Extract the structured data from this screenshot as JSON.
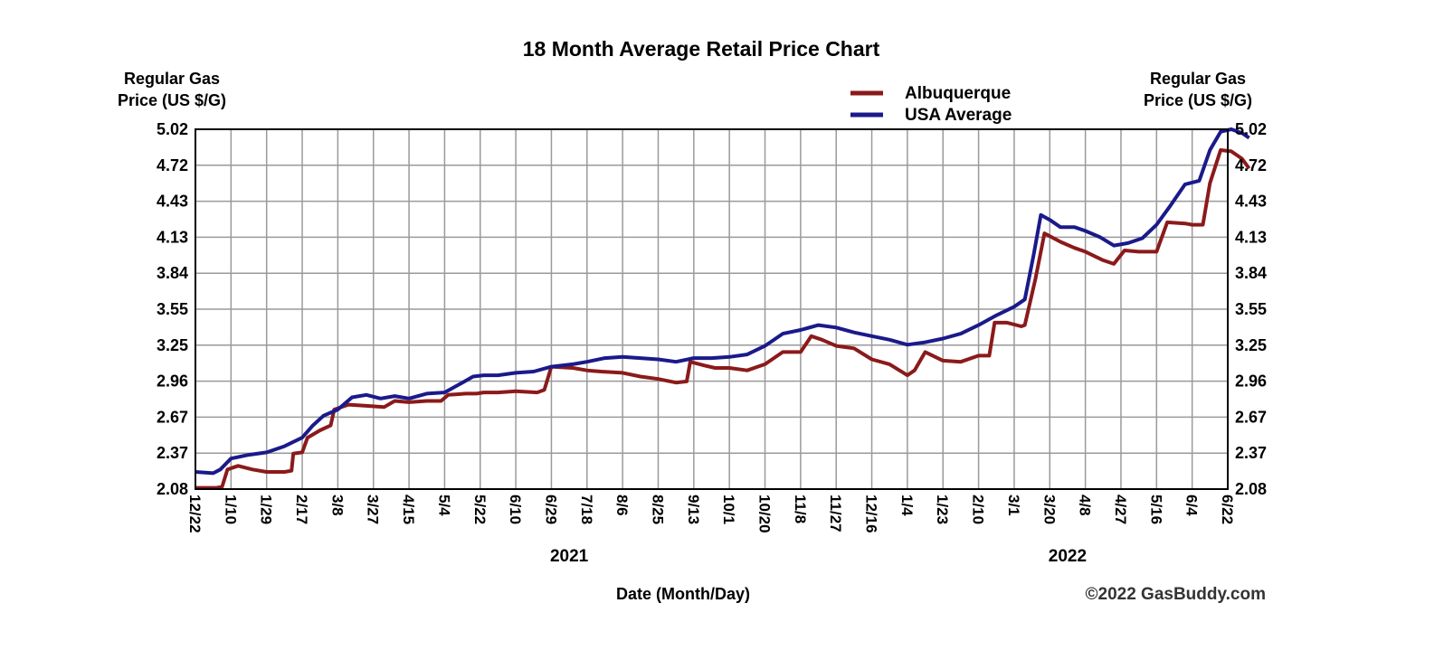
{
  "chart_data": {
    "type": "line",
    "title": "18 Month Average Retail Price Chart",
    "ylabel_left": [
      "Regular Gas",
      "Price (US $/G)"
    ],
    "ylabel_right": [
      "Regular Gas",
      "Price (US $/G)"
    ],
    "xlabel": "Date (Month/Day)",
    "credit": "©2022 GasBuddy.com",
    "ylim": [
      2.08,
      5.02
    ],
    "yticks": [
      "5.02",
      "4.72",
      "4.43",
      "4.13",
      "3.84",
      "3.55",
      "3.25",
      "2.96",
      "2.67",
      "2.37",
      "2.08"
    ],
    "grid": true,
    "legend_position": "top-right",
    "x_tick_labels": [
      "12/22",
      "1/10",
      "1/29",
      "2/17",
      "3/8",
      "3/27",
      "4/15",
      "5/4",
      "5/22",
      "6/10",
      "6/29",
      "7/18",
      "8/6",
      "8/25",
      "9/13",
      "10/1",
      "10/20",
      "11/8",
      "11/27",
      "12/16",
      "1/4",
      "1/23",
      "2/10",
      "3/1",
      "3/20",
      "4/8",
      "4/27",
      "5/16",
      "6/4",
      "6/22"
    ],
    "year_labels": [
      {
        "label": "2021",
        "at_tick": 10.5
      },
      {
        "label": "2022",
        "at_tick": 24.5
      }
    ],
    "series": [
      {
        "name": "Albuquerque",
        "color": "#8B1A1A",
        "points": [
          [
            0,
            2.09
          ],
          [
            0.6,
            2.09
          ],
          [
            0.75,
            2.1
          ],
          [
            0.9,
            2.24
          ],
          [
            1.2,
            2.27
          ],
          [
            1.6,
            2.24
          ],
          [
            2,
            2.22
          ],
          [
            2.5,
            2.22
          ],
          [
            2.7,
            2.23
          ],
          [
            2.75,
            2.37
          ],
          [
            3,
            2.38
          ],
          [
            3.15,
            2.5
          ],
          [
            3.5,
            2.56
          ],
          [
            3.8,
            2.6
          ],
          [
            3.9,
            2.73
          ],
          [
            4.3,
            2.77
          ],
          [
            4.8,
            2.76
          ],
          [
            5.3,
            2.75
          ],
          [
            5.6,
            2.8
          ],
          [
            6,
            2.79
          ],
          [
            6.5,
            2.8
          ],
          [
            6.9,
            2.8
          ],
          [
            7.1,
            2.85
          ],
          [
            7.6,
            2.86
          ],
          [
            7.9,
            2.86
          ],
          [
            8.1,
            2.87
          ],
          [
            8.5,
            2.87
          ],
          [
            9,
            2.88
          ],
          [
            9.6,
            2.87
          ],
          [
            9.8,
            2.89
          ],
          [
            10,
            3.08
          ],
          [
            10.6,
            3.07
          ],
          [
            11,
            3.05
          ],
          [
            11.4,
            3.04
          ],
          [
            12,
            3.03
          ],
          [
            12.5,
            3.0
          ],
          [
            13,
            2.98
          ],
          [
            13.5,
            2.95
          ],
          [
            13.8,
            2.96
          ],
          [
            13.9,
            3.12
          ],
          [
            14.3,
            3.09
          ],
          [
            14.6,
            3.07
          ],
          [
            15,
            3.07
          ],
          [
            15.5,
            3.05
          ],
          [
            16,
            3.1
          ],
          [
            16.5,
            3.2
          ],
          [
            17,
            3.2
          ],
          [
            17.3,
            3.33
          ],
          [
            17.6,
            3.3
          ],
          [
            18,
            3.25
          ],
          [
            18.5,
            3.23
          ],
          [
            19,
            3.14
          ],
          [
            19.5,
            3.1
          ],
          [
            20,
            3.01
          ],
          [
            20.2,
            3.05
          ],
          [
            20.5,
            3.2
          ],
          [
            21,
            3.13
          ],
          [
            21.5,
            3.12
          ],
          [
            22,
            3.17
          ],
          [
            22.3,
            3.17
          ],
          [
            22.45,
            3.44
          ],
          [
            22.8,
            3.44
          ],
          [
            23.2,
            3.41
          ],
          [
            23.3,
            3.42
          ],
          [
            23.6,
            3.8
          ],
          [
            23.85,
            4.17
          ],
          [
            24.3,
            4.1
          ],
          [
            24.7,
            4.05
          ],
          [
            25,
            4.02
          ],
          [
            25.5,
            3.95
          ],
          [
            25.8,
            3.92
          ],
          [
            26.1,
            4.03
          ],
          [
            26.5,
            4.02
          ],
          [
            27,
            4.02
          ],
          [
            27.3,
            4.26
          ],
          [
            27.8,
            4.25
          ],
          [
            28,
            4.24
          ],
          [
            28.3,
            4.24
          ],
          [
            28.5,
            4.58
          ],
          [
            28.8,
            4.85
          ],
          [
            29.1,
            4.84
          ],
          [
            29.4,
            4.78
          ],
          [
            29.6,
            4.7
          ]
        ]
      },
      {
        "name": "USA Average",
        "color": "#1A1A8B",
        "points": [
          [
            0,
            2.22
          ],
          [
            0.5,
            2.21
          ],
          [
            0.7,
            2.24
          ],
          [
            1,
            2.33
          ],
          [
            1.5,
            2.36
          ],
          [
            2,
            2.38
          ],
          [
            2.5,
            2.43
          ],
          [
            3,
            2.5
          ],
          [
            3.3,
            2.6
          ],
          [
            3.6,
            2.68
          ],
          [
            4,
            2.73
          ],
          [
            4.4,
            2.83
          ],
          [
            4.8,
            2.85
          ],
          [
            5.2,
            2.82
          ],
          [
            5.6,
            2.84
          ],
          [
            6,
            2.82
          ],
          [
            6.5,
            2.86
          ],
          [
            7,
            2.87
          ],
          [
            7.5,
            2.95
          ],
          [
            7.8,
            3.0
          ],
          [
            8.1,
            3.01
          ],
          [
            8.5,
            3.01
          ],
          [
            9,
            3.03
          ],
          [
            9.5,
            3.04
          ],
          [
            10,
            3.08
          ],
          [
            10.6,
            3.1
          ],
          [
            11,
            3.12
          ],
          [
            11.5,
            3.15
          ],
          [
            12,
            3.16
          ],
          [
            12.5,
            3.15
          ],
          [
            13,
            3.14
          ],
          [
            13.5,
            3.12
          ],
          [
            14,
            3.15
          ],
          [
            14.5,
            3.15
          ],
          [
            15,
            3.16
          ],
          [
            15.5,
            3.18
          ],
          [
            16,
            3.25
          ],
          [
            16.5,
            3.35
          ],
          [
            17,
            3.38
          ],
          [
            17.5,
            3.42
          ],
          [
            18,
            3.4
          ],
          [
            18.5,
            3.36
          ],
          [
            19,
            3.33
          ],
          [
            19.5,
            3.3
          ],
          [
            20,
            3.26
          ],
          [
            20.5,
            3.28
          ],
          [
            21,
            3.31
          ],
          [
            21.5,
            3.35
          ],
          [
            22,
            3.42
          ],
          [
            22.5,
            3.5
          ],
          [
            23,
            3.57
          ],
          [
            23.3,
            3.63
          ],
          [
            23.55,
            4.0
          ],
          [
            23.75,
            4.32
          ],
          [
            24,
            4.28
          ],
          [
            24.3,
            4.22
          ],
          [
            24.7,
            4.22
          ],
          [
            25,
            4.19
          ],
          [
            25.4,
            4.14
          ],
          [
            25.8,
            4.07
          ],
          [
            26.2,
            4.09
          ],
          [
            26.6,
            4.13
          ],
          [
            27,
            4.24
          ],
          [
            27.4,
            4.4
          ],
          [
            27.8,
            4.57
          ],
          [
            28.2,
            4.6
          ],
          [
            28.5,
            4.85
          ],
          [
            28.8,
            5.0
          ],
          [
            29.1,
            5.02
          ],
          [
            29.4,
            4.99
          ],
          [
            29.6,
            4.95
          ]
        ]
      }
    ]
  }
}
